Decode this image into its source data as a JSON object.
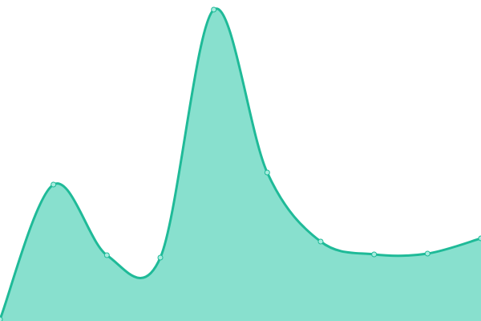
{
  "chart_data": {
    "type": "area",
    "x": [
      0,
      1,
      2,
      3,
      4,
      5,
      6,
      7,
      8,
      9
    ],
    "values": [
      2,
      170,
      82,
      79,
      388,
      185,
      99,
      83,
      84,
      103
    ],
    "ylim": [
      0,
      400
    ],
    "xlim": [
      0,
      9
    ],
    "grid": false,
    "legend": "none",
    "smooth": true,
    "colors": {
      "line": "#1fba98",
      "fill": "#88e0ce",
      "point_fill": "#a8ecdf"
    }
  }
}
